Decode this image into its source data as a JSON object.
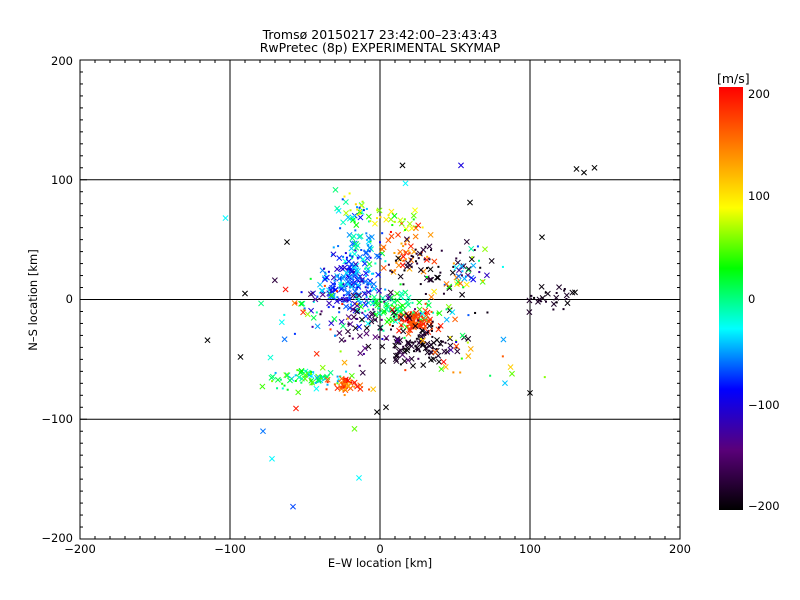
{
  "chart_data": {
    "type": "scatter",
    "title": "Tromsø 20150217 23:42:00–23:43:43",
    "subtitle": "RwPretec (8p) EXPERIMENTAL SKYMAP",
    "xlabel": "E–W location [km]",
    "ylabel": "N–S location [km]",
    "xlim": [
      -200,
      200
    ],
    "ylim": [
      -200,
      200
    ],
    "xticks": [
      "−200",
      "−100",
      "0",
      "100",
      "200"
    ],
    "yticks": [
      "200",
      "100",
      "0",
      "−100",
      "−200"
    ],
    "grid_lines_x": [
      -100,
      0,
      100
    ],
    "grid_lines_y": [
      -100,
      0,
      100
    ],
    "colorbar": {
      "title": "[m/s]",
      "range": [
        -200,
        200
      ],
      "ticks": [
        "200",
        "100",
        "0",
        "−100",
        "−200"
      ],
      "colormap": [
        "#000000",
        "#5a007a",
        "#0000ff",
        "#00ffff",
        "#00ff00",
        "#ffff00",
        "#ff7f00",
        "#ff0000"
      ]
    },
    "clusters": [
      {
        "x": -20,
        "y": 15,
        "sx": 10,
        "sy": 12,
        "n": 170,
        "vmin": -120,
        "vmax": -30
      },
      {
        "x": -12,
        "y": 40,
        "sx": 8,
        "sy": 12,
        "n": 60,
        "vmin": -90,
        "vmax": 20
      },
      {
        "x": -15,
        "y": 75,
        "sx": 8,
        "sy": 6,
        "n": 30,
        "vmin": -80,
        "vmax": 110
      },
      {
        "x": 15,
        "y": 68,
        "sx": 8,
        "sy": 6,
        "n": 25,
        "vmin": 20,
        "vmax": 110
      },
      {
        "x": 15,
        "y": 40,
        "sx": 10,
        "sy": 10,
        "n": 45,
        "vmin": 120,
        "vmax": 200
      },
      {
        "x": 32,
        "y": 30,
        "sx": 15,
        "sy": 12,
        "n": 55,
        "vmin": -200,
        "vmax": -170
      },
      {
        "x": 60,
        "y": 18,
        "sx": 12,
        "sy": 10,
        "n": 35,
        "vmin": -200,
        "vmax": 190
      },
      {
        "x": 12,
        "y": -8,
        "sx": 12,
        "sy": 7,
        "n": 95,
        "vmin": -20,
        "vmax": 40
      },
      {
        "x": 25,
        "y": -18,
        "sx": 8,
        "sy": 5,
        "n": 85,
        "vmin": 150,
        "vmax": 200
      },
      {
        "x": 25,
        "y": -38,
        "sx": 12,
        "sy": 9,
        "n": 95,
        "vmin": -200,
        "vmax": -175
      },
      {
        "x": -2,
        "y": -25,
        "sx": 12,
        "sy": 12,
        "n": 55,
        "vmin": -200,
        "vmax": -130
      },
      {
        "x": -42,
        "y": -10,
        "sx": 15,
        "sy": 14,
        "n": 55,
        "vmin": -200,
        "vmax": 200
      },
      {
        "x": -48,
        "y": -66,
        "sx": 13,
        "sy": 4,
        "n": 75,
        "vmin": -60,
        "vmax": 60
      },
      {
        "x": -22,
        "y": -72,
        "sx": 6,
        "sy": 3,
        "n": 40,
        "vmin": 100,
        "vmax": 200
      },
      {
        "x": 115,
        "y": 2,
        "sx": 9,
        "sy": 5,
        "n": 25,
        "vmin": -200,
        "vmax": -180
      },
      {
        "x": 45,
        "y": -35,
        "sx": 25,
        "sy": 25,
        "n": 45,
        "vmin": -200,
        "vmax": 200
      }
    ],
    "points": [
      {
        "x": -115,
        "y": -34,
        "v": -200
      },
      {
        "x": -93,
        "y": -48,
        "v": -200
      },
      {
        "x": -90,
        "y": 5,
        "v": -200
      },
      {
        "x": -62,
        "y": 48,
        "v": -200
      },
      {
        "x": -103,
        "y": 68,
        "v": -30
      },
      {
        "x": -78,
        "y": -110,
        "v": -60
      },
      {
        "x": -72,
        "y": -133,
        "v": -30
      },
      {
        "x": -58,
        "y": -173,
        "v": -70
      },
      {
        "x": -14,
        "y": -149,
        "v": -30
      },
      {
        "x": -17,
        "y": -108,
        "v": 50
      },
      {
        "x": 15,
        "y": 112,
        "v": -200
      },
      {
        "x": 54,
        "y": 112,
        "v": -100
      },
      {
        "x": 60,
        "y": 81,
        "v": -200
      },
      {
        "x": 17,
        "y": 97,
        "v": -30
      },
      {
        "x": 108,
        "y": 52,
        "v": -200
      },
      {
        "x": 131,
        "y": 109,
        "v": -200
      },
      {
        "x": 136,
        "y": 106,
        "v": -200
      },
      {
        "x": 143,
        "y": 110,
        "v": -200
      },
      {
        "x": 100,
        "y": -78,
        "v": -200
      },
      {
        "x": 88,
        "y": -62,
        "v": 50
      },
      {
        "x": -2,
        "y": -94,
        "v": -200
      },
      {
        "x": 4,
        "y": -90,
        "v": -200
      },
      {
        "x": -56,
        "y": -91,
        "v": 190
      },
      {
        "x": 130,
        "y": 6,
        "v": -200
      },
      {
        "x": 70,
        "y": 42,
        "v": 60
      }
    ]
  }
}
